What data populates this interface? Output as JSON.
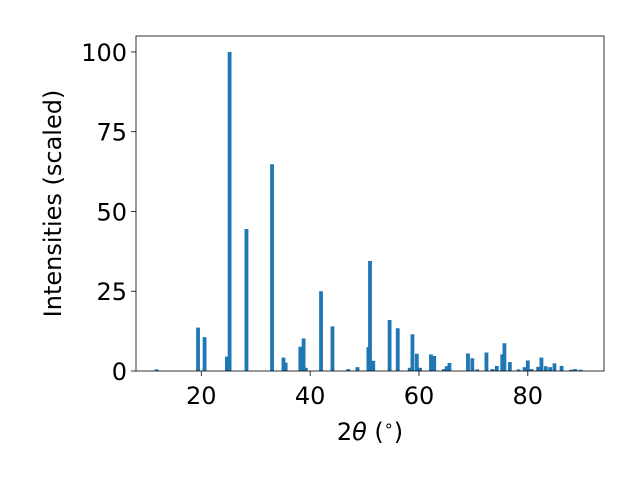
{
  "chart_data": {
    "type": "bar",
    "xlabel": "2θ (°)",
    "ylabel": "Intensities (scaled)",
    "xlim": [
      8,
      94
    ],
    "ylim": [
      0,
      105
    ],
    "xticks": [
      20,
      40,
      60,
      80
    ],
    "yticks": [
      0,
      25,
      50,
      75,
      100
    ],
    "bar_color": "#1f77b4",
    "bar_width": 0.7,
    "x": [
      11.8,
      19.4,
      20.6,
      24.7,
      25.2,
      28.3,
      33.0,
      35.1,
      35.5,
      38.2,
      38.8,
      39.2,
      42.0,
      44.1,
      47.0,
      48.7,
      50.7,
      51.0,
      51.6,
      54.6,
      56.1,
      58.3,
      58.8,
      59.6,
      60.2,
      62.2,
      62.8,
      64.6,
      65.1,
      65.6,
      69.0,
      69.8,
      70.7,
      72.4,
      73.5,
      74.3,
      75.3,
      75.7,
      76.7,
      78.3,
      79.4,
      80.0,
      80.7,
      81.9,
      82.5,
      83.3,
      84.1,
      84.9,
      86.2,
      88.0,
      88.7,
      89.7
    ],
    "values": [
      0.5,
      13.6,
      10.6,
      4.5,
      100.0,
      44.5,
      64.8,
      4.2,
      2.6,
      7.6,
      10.2,
      1.0,
      25.0,
      14.0,
      0.6,
      1.2,
      7.5,
      34.5,
      3.2,
      16.0,
      13.4,
      1.0,
      11.5,
      5.4,
      1.0,
      5.2,
      4.7,
      0.6,
      1.5,
      2.5,
      5.5,
      4.0,
      0.5,
      5.8,
      0.6,
      1.6,
      5.2,
      8.7,
      2.8,
      0.5,
      1.2,
      3.3,
      0.6,
      1.3,
      4.2,
      1.5,
      1.2,
      2.4,
      1.6,
      0.4,
      0.6,
      0.4
    ]
  }
}
